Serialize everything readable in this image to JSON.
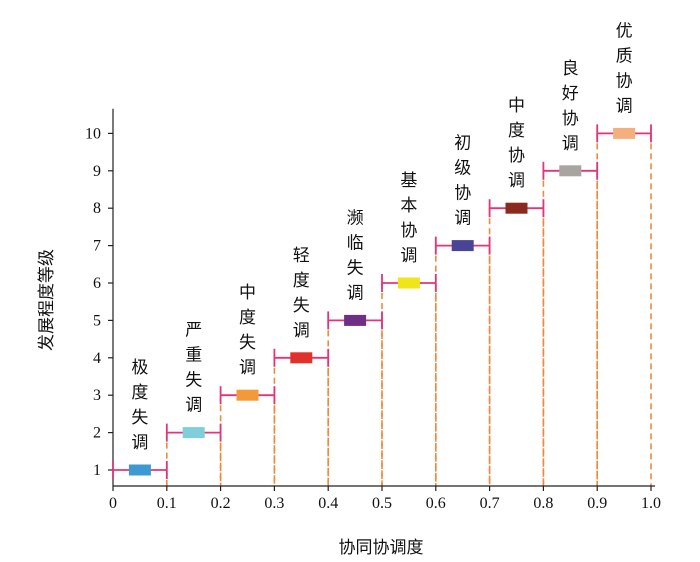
{
  "chart_data": {
    "type": "bar",
    "xlabel": "协同协调度",
    "ylabel": "发展程度等级",
    "xlim": [
      0,
      1.0
    ],
    "ylim": [
      0.5,
      10.5
    ],
    "x_ticks": [
      "0",
      "0.1",
      "0.2",
      "0.3",
      "0.4",
      "0.5",
      "0.6",
      "0.7",
      "0.8",
      "0.9",
      "1.0"
    ],
    "y_ticks": [
      "1",
      "2",
      "3",
      "4",
      "5",
      "6",
      "7",
      "8",
      "9",
      "10"
    ],
    "categories": [
      {
        "name": "极度失调",
        "x_min": 0.0,
        "x_max": 0.1,
        "level": 1,
        "color": "#3d9ad1"
      },
      {
        "name": "严重失调",
        "x_min": 0.1,
        "x_max": 0.2,
        "level": 2,
        "color": "#7ecfd9"
      },
      {
        "name": "中度失调",
        "x_min": 0.2,
        "x_max": 0.3,
        "level": 3,
        "color": "#f29a3a"
      },
      {
        "name": "轻度失调",
        "x_min": 0.3,
        "x_max": 0.4,
        "level": 4,
        "color": "#e0312a"
      },
      {
        "name": "濒临失调",
        "x_min": 0.4,
        "x_max": 0.5,
        "level": 5,
        "color": "#6f2f86"
      },
      {
        "name": "基本协调",
        "x_min": 0.5,
        "x_max": 0.6,
        "level": 6,
        "color": "#f0e51a"
      },
      {
        "name": "初级协调",
        "x_min": 0.6,
        "x_max": 0.7,
        "level": 7,
        "color": "#4a4497"
      },
      {
        "name": "中度协调",
        "x_min": 0.7,
        "x_max": 0.8,
        "level": 8,
        "color": "#8a2a1f"
      },
      {
        "name": "良好协调",
        "x_min": 0.8,
        "x_max": 0.9,
        "level": 9,
        "color": "#a8a5a1"
      },
      {
        "name": "优质协调",
        "x_min": 0.9,
        "x_max": 1.0,
        "level": 10,
        "color": "#f4b07c"
      }
    ],
    "range_color": "#e5337a",
    "guide_color": "#f0893a"
  }
}
